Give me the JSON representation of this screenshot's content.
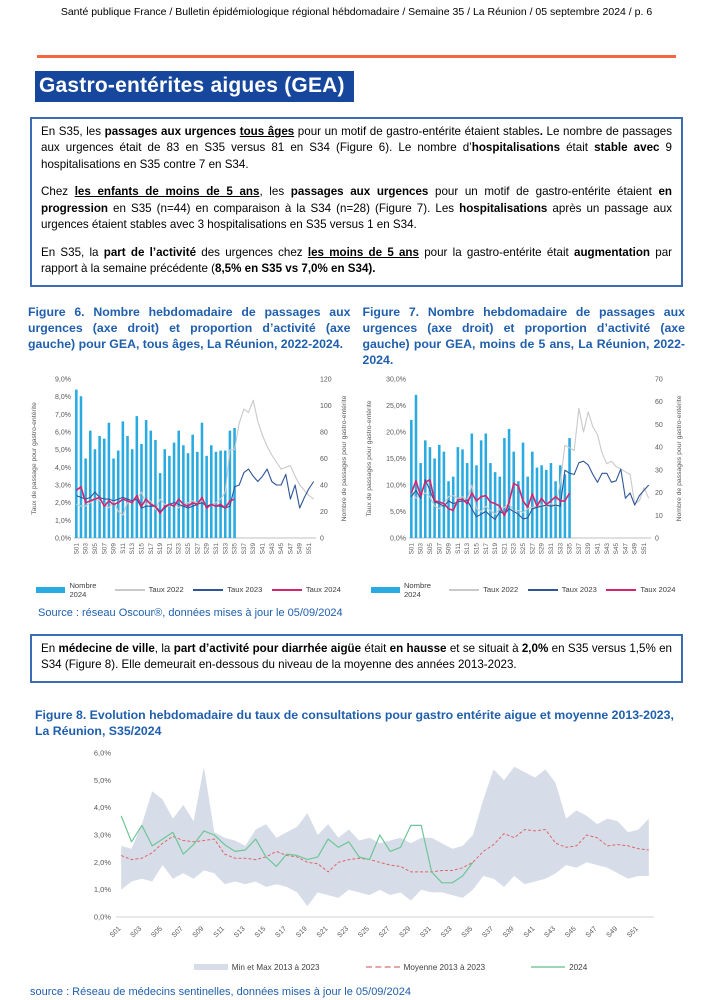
{
  "header": {
    "text": "Santé publique France / Bulletin épidémiologique régional hébdomadaire / Semaine 35 / La Réunion / 05 septembre 2024 / p. 6"
  },
  "title": "Gastro-entérites aigues (GEA)",
  "colors": {
    "accent_orange": "#F4663F",
    "title_bg": "#17479D",
    "caption_blue": "#1F5FAD",
    "box_border": "#3B6CB4",
    "bar_cyan": "#29ABE2",
    "line_gray_2022": "#C9C9C9",
    "line_blue_2023": "#2F5597",
    "line_pink_2024": "#D6246E",
    "band_gray": "#D7DDE8",
    "mean_red": "#E06666",
    "green_2024": "#6EC696",
    "source_blue": "#1F5FAD"
  },
  "box1": {
    "p1": [
      {
        "t": "En S35, les ",
        "s": ""
      },
      {
        "t": "passages aux urgences ",
        "s": "b"
      },
      {
        "t": "tous âges",
        "s": "bu"
      },
      {
        "t": " pour un motif de gastro-entérite étaient stables",
        "s": ""
      },
      {
        "t": ".",
        "s": "b"
      },
      {
        "t": " Le nombre de passages aux urgences était de 83 en S35 versus 81 en S34 (Figure 6). Le nombre d’",
        "s": ""
      },
      {
        "t": "hospitalisations",
        "s": "b"
      },
      {
        "t": " était ",
        "s": ""
      },
      {
        "t": "stable avec",
        "s": "b"
      },
      {
        "t": " 9 hospitalisations en S35 contre 7 en S34.",
        "s": ""
      }
    ],
    "p2": [
      {
        "t": "Chez ",
        "s": ""
      },
      {
        "t": "les enfants de moins de 5 ans",
        "s": "bu"
      },
      {
        "t": ", les ",
        "s": ""
      },
      {
        "t": "passages aux urgences",
        "s": "b"
      },
      {
        "t": " pour un motif de gastro-entérite étaient ",
        "s": ""
      },
      {
        "t": "en progression",
        "s": "b"
      },
      {
        "t": " en S35 (n=44) en comparaison à la S34 (n=28) (Figure 7). Les ",
        "s": ""
      },
      {
        "t": "hospitalisations",
        "s": "b"
      },
      {
        "t": " après un passage aux urgences étaient stables avec 3 hospitalisations en S35 versus 1 en S34.",
        "s": ""
      }
    ],
    "p3": [
      {
        "t": "En S35, la ",
        "s": ""
      },
      {
        "t": "part de l’activité",
        "s": "b"
      },
      {
        "t": " des urgences chez ",
        "s": ""
      },
      {
        "t": "les moins de 5 ans",
        "s": "bu"
      },
      {
        "t": " pour la gastro-entérite était ",
        "s": ""
      },
      {
        "t": "augmentation",
        "s": "b"
      },
      {
        "t": " par rapport à la semaine précédente (",
        "s": ""
      },
      {
        "t": "8,5% en S35 vs 7,0% en S34).",
        "s": "b"
      }
    ]
  },
  "box2": {
    "p1": [
      {
        "t": "En ",
        "s": ""
      },
      {
        "t": "médecine de ville",
        "s": "b"
      },
      {
        "t": ", la ",
        "s": ""
      },
      {
        "t": "part d’activité pour diarrhée aigüe",
        "s": "b"
      },
      {
        "t": " était ",
        "s": ""
      },
      {
        "t": "en hausse",
        "s": "b"
      },
      {
        "t": " et se situait à ",
        "s": ""
      },
      {
        "t": "2,0%",
        "s": "b"
      },
      {
        "t": " en S35 versus 1,5% en S34 (Figure 8). Elle demeurait en-dessous du niveau de la moyenne des années 2013-2023.",
        "s": ""
      }
    ]
  },
  "figures": {
    "fig6": {
      "caption": "Figure 6. Nombre hebdomadaire de passages aux urgences (axe droit) et proportion d’activité (axe gauche) pour GEA, tous âges, La Réunion, 2022-2024."
    },
    "fig7": {
      "caption": "Figure 7. Nombre hebdomadaire de passages aux urgences (axe droit) et proportion d’activité (axe gauche) pour GEA, moins de 5 ans, La Réunion, 2022-2024."
    },
    "fig8": {
      "caption": "Figure 8. Evolution hebdomadaire du taux de consultations pour gastro entérite aigue et moyenne 2013-2023, La Réunion, S35/2024"
    }
  },
  "sources": {
    "oscour": "Source : réseau Oscour®, données mises à jour le 05/09/2024",
    "sentinelles": "source : Réseau de médecins sentinelles, données mises à jour le 05/09/2024"
  },
  "chart_data": [
    {
      "type": "bar",
      "kind": "combo",
      "title": "Figure 6 - GEA tous âges, La Réunion, 2022-2024",
      "categories": [
        "S01",
        "S02",
        "S03",
        "S04",
        "S05",
        "S06",
        "S07",
        "S08",
        "S09",
        "S10",
        "S11",
        "S12",
        "S13",
        "S14",
        "S15",
        "S16",
        "S17",
        "S18",
        "S19",
        "S20",
        "S21",
        "S22",
        "S23",
        "S24",
        "S25",
        "S26",
        "S27",
        "S28",
        "S29",
        "S30",
        "S31",
        "S32",
        "S33",
        "S34",
        "S35",
        "S36",
        "S37",
        "S38",
        "S39",
        "S40",
        "S41",
        "S42",
        "S43",
        "S44",
        "S45",
        "S46",
        "S47",
        "S48",
        "S49",
        "S50",
        "S51",
        "S52"
      ],
      "bars": {
        "name": "Nombre 2024",
        "axis": "right",
        "color": "#29ABE2",
        "values": [
          112,
          107,
          60,
          81,
          67,
          77,
          75,
          87,
          60,
          66,
          88,
          77,
          67,
          92,
          71,
          89,
          81,
          74,
          49,
          67,
          62,
          72,
          81,
          70,
          64,
          78,
          65,
          87,
          62,
          70,
          65,
          66,
          66,
          81,
          83
        ]
      },
      "lines": [
        {
          "name": "Taux 2022",
          "color": "#C9C9C9",
          "width": 1.1,
          "values": [
            1.9,
            1.8,
            1.8,
            2.0,
            2.2,
            2.1,
            1.9,
            1.7,
            2.1,
            1.5,
            1.3,
            2.0,
            2.1,
            2.2,
            2.6,
            1.9,
            2.1,
            1.6,
            2.2,
            1.9,
            1.8,
            2.0,
            1.7,
            1.9,
            2.0,
            2.1,
            2.0,
            2.1,
            1.8,
            1.9,
            2.0,
            2.2,
            2.6,
            5.0,
            5.0,
            6.5,
            7.3,
            7.1,
            7.8,
            6.6,
            5.8,
            5.2,
            4.7,
            4.3,
            3.9,
            4.0,
            4.1,
            3.5,
            3.0,
            2.7,
            2.4,
            2.2
          ]
        },
        {
          "name": "Taux 2023",
          "color": "#2F5597",
          "width": 1.1,
          "values": [
            2.4,
            2.3,
            2.2,
            2.3,
            2.6,
            2.3,
            2.2,
            2.2,
            2.1,
            2.2,
            2.3,
            2.2,
            2.1,
            2.2,
            1.7,
            1.8,
            1.8,
            1.8,
            1.5,
            1.7,
            1.9,
            2.0,
            1.9,
            1.8,
            1.7,
            1.8,
            1.9,
            2.0,
            1.8,
            1.9,
            1.8,
            1.8,
            1.7,
            1.8,
            2.9,
            3.0,
            3.7,
            3.9,
            3.5,
            3.2,
            3.5,
            3.9,
            3.2,
            3.0,
            3.0,
            3.6,
            2.2,
            3.0,
            1.7,
            2.3,
            2.8,
            3.2
          ]
        },
        {
          "name": "Taux 2024",
          "color": "#D6246E",
          "width": 1.6,
          "values": [
            2.7,
            2.9,
            2.0,
            2.1,
            2.2,
            2.3,
            1.8,
            2.1,
            1.9,
            2.0,
            2.2,
            2.1,
            2.0,
            2.4,
            1.8,
            2.2,
            1.9,
            1.8,
            1.4,
            1.8,
            1.9,
            1.8,
            2.2,
            1.9,
            1.8,
            2.0,
            1.9,
            2.3,
            1.7,
            1.9,
            1.8,
            1.9,
            1.7,
            2.1,
            2.2
          ]
        }
      ],
      "left": {
        "min": 0,
        "max": 9,
        "step": 1,
        "percent": true,
        "label": "Taux de passage pour gastro-entérite"
      },
      "right": {
        "min": 0,
        "max": 120,
        "step": 20,
        "label": "Nombre de passages pour gastro-entérite"
      }
    },
    {
      "type": "bar",
      "kind": "combo",
      "title": "Figure 7 - GEA moins de 5 ans, La Réunion, 2022-2024",
      "categories": [
        "S01",
        "S02",
        "S03",
        "S04",
        "S05",
        "S06",
        "S07",
        "S08",
        "S09",
        "S10",
        "S11",
        "S12",
        "S13",
        "S14",
        "S15",
        "S16",
        "S17",
        "S18",
        "S19",
        "S20",
        "S21",
        "S22",
        "S23",
        "S24",
        "S25",
        "S26",
        "S27",
        "S28",
        "S29",
        "S30",
        "S31",
        "S32",
        "S33",
        "S34",
        "S35",
        "S36",
        "S37",
        "S38",
        "S39",
        "S40",
        "S41",
        "S42",
        "S43",
        "S44",
        "S45",
        "S46",
        "S47",
        "S48",
        "S49",
        "S50",
        "S51",
        "S52"
      ],
      "bars": {
        "name": "Nombre 2024",
        "axis": "right",
        "color": "#29ABE2",
        "values": [
          52,
          63,
          33,
          43,
          40,
          35,
          41,
          38,
          25,
          27,
          40,
          39,
          33,
          46,
          32,
          43,
          46,
          33,
          29,
          27,
          44,
          48,
          38,
          25,
          42,
          27,
          38,
          31,
          32,
          30,
          33,
          25,
          32,
          28,
          44
        ]
      },
      "lines": [
        {
          "name": "Taux 2022",
          "color": "#C9C9C9",
          "width": 1.1,
          "values": [
            9.0,
            7.5,
            8.0,
            8.5,
            7.8,
            6.0,
            5.5,
            6.5,
            7.8,
            8.0,
            7.5,
            7.8,
            7.2,
            10.0,
            5.5,
            5.0,
            6.0,
            5.2,
            4.5,
            5.5,
            5.8,
            6.5,
            5.0,
            5.2,
            4.8,
            5.5,
            5.8,
            6.0,
            6.2,
            6.0,
            6.5,
            6.0,
            10.5,
            17.5,
            17.0,
            16.5,
            24.5,
            20.0,
            23.8,
            21.0,
            19.5,
            16.0,
            14.0,
            14.5,
            13.5,
            13.0,
            12.5,
            12.0,
            6.5,
            7.0,
            9.5,
            7.5
          ]
        },
        {
          "name": "Taux 2023",
          "color": "#2F5597",
          "width": 1.1,
          "values": [
            7.8,
            9.0,
            7.5,
            11.0,
            9.0,
            6.8,
            6.5,
            6.0,
            7.0,
            6.5,
            6.8,
            7.0,
            7.2,
            5.5,
            4.0,
            4.5,
            5.0,
            4.2,
            3.5,
            5.0,
            4.5,
            5.5,
            5.0,
            4.5,
            3.6,
            3.8,
            5.5,
            5.8,
            6.0,
            6.2,
            6.0,
            6.2,
            6.0,
            12.8,
            12.2,
            12.0,
            14.2,
            14.5,
            13.8,
            12.0,
            10.5,
            12.2,
            12.2,
            10.5,
            10.8,
            13.0,
            7.5,
            8.5,
            6.2,
            8.0,
            9.0,
            10.0
          ]
        },
        {
          "name": "Taux 2024",
          "color": "#D6246E",
          "width": 1.6,
          "values": [
            8.5,
            10.8,
            8.0,
            10.5,
            11.0,
            7.0,
            6.8,
            6.5,
            5.5,
            5.2,
            7.2,
            7.3,
            6.5,
            8.5,
            7.0,
            7.8,
            8.0,
            6.8,
            6.5,
            6.0,
            4.2,
            6.8,
            10.3,
            9.8,
            7.0,
            5.8,
            8.3,
            6.0,
            7.5,
            6.3,
            7.0,
            7.8,
            7.0,
            7.0,
            8.5
          ]
        }
      ],
      "left": {
        "min": 0,
        "max": 30,
        "step": 5,
        "percent": true,
        "label": "Taux de passages pour gastro-entérite"
      },
      "right": {
        "min": 0,
        "max": 70,
        "step": 10,
        "label": "Nombre de passages pour gastro-entérite"
      }
    },
    {
      "type": "area",
      "kind": "band",
      "title": "Figure 8 - Taux de consultations GEA médecine de ville, La Réunion",
      "categories": [
        "S01",
        "S02",
        "S03",
        "S04",
        "S05",
        "S06",
        "S07",
        "S08",
        "S09",
        "S10",
        "S11",
        "S12",
        "S13",
        "S14",
        "S15",
        "S16",
        "S17",
        "S18",
        "S19",
        "S20",
        "S21",
        "S22",
        "S23",
        "S24",
        "S25",
        "S26",
        "S27",
        "S28",
        "S29",
        "S30",
        "S31",
        "S32",
        "S33",
        "S34",
        "S35",
        "S36",
        "S37",
        "S38",
        "S39",
        "S40",
        "S41",
        "S42",
        "S43",
        "S44",
        "S45",
        "S46",
        "S47",
        "S48",
        "S49",
        "S50",
        "S51",
        "S52"
      ],
      "band": {
        "name": "Min et Max 2013 à 2023",
        "color": "#D7DDE8",
        "max": [
          2.6,
          2.5,
          3.4,
          4.6,
          4.3,
          3.6,
          4.1,
          3.5,
          5.5,
          3.1,
          2.9,
          2.8,
          2.6,
          3.2,
          3.4,
          2.9,
          3.1,
          3.3,
          3.8,
          3.0,
          3.4,
          2.9,
          3.2,
          2.8,
          2.9,
          2.7,
          2.8,
          2.9,
          2.7,
          2.9,
          2.9,
          2.7,
          2.5,
          2.6,
          3.0,
          4.3,
          5.4,
          5.0,
          5.5,
          5.3,
          5.1,
          5.4,
          4.9,
          3.6,
          3.9,
          3.7,
          3.4,
          3.6,
          3.5,
          3.1,
          3.2,
          3.6
        ],
        "min": [
          1.0,
          1.3,
          1.4,
          1.3,
          1.9,
          1.4,
          1.6,
          1.4,
          1.7,
          1.6,
          1.2,
          1.3,
          1.2,
          1.3,
          1.1,
          1.2,
          1.1,
          0.9,
          0.4,
          0.9,
          0.8,
          0.7,
          1.0,
          0.9,
          0.8,
          1.0,
          0.8,
          0.9,
          0.6,
          1.0,
          0.9,
          0.9,
          0.8,
          0.7,
          1.0,
          1.5,
          1.4,
          1.1,
          1.5,
          1.2,
          1.3,
          1.4,
          1.6,
          1.9,
          1.8,
          2.0,
          1.9,
          1.8,
          1.6,
          1.4,
          1.5,
          1.5
        ]
      },
      "lines": [
        {
          "name": "Moyenne 2013 à 2023",
          "color": "#E06666",
          "width": 1,
          "dash": "3 2",
          "values": [
            2.25,
            2.1,
            2.15,
            2.35,
            2.7,
            2.95,
            2.8,
            2.75,
            2.8,
            2.85,
            2.3,
            2.15,
            2.15,
            2.1,
            2.2,
            2.4,
            2.25,
            2.2,
            2.0,
            1.95,
            1.65,
            2.0,
            2.1,
            2.15,
            2.1,
            2.0,
            1.9,
            1.85,
            1.65,
            1.65,
            1.65,
            1.7,
            1.7,
            1.8,
            2.0,
            2.4,
            2.65,
            3.05,
            2.9,
            3.2,
            3.15,
            3.2,
            2.7,
            2.55,
            2.6,
            3.0,
            2.9,
            2.6,
            2.65,
            2.6,
            2.5,
            2.45
          ]
        },
        {
          "name": "2024",
          "color": "#6EC696",
          "width": 1.2,
          "values": [
            3.7,
            2.75,
            3.35,
            2.6,
            2.85,
            3.1,
            2.3,
            2.65,
            3.15,
            3.0,
            2.65,
            2.4,
            2.45,
            2.85,
            2.2,
            1.85,
            2.3,
            2.25,
            2.1,
            2.2,
            2.85,
            2.55,
            2.75,
            2.2,
            2.1,
            3.0,
            2.4,
            2.55,
            3.35,
            3.35,
            1.65,
            1.25,
            1.25,
            1.5,
            2.0
          ]
        }
      ],
      "left": {
        "min": 0,
        "max": 6,
        "step": 1,
        "percent": true
      }
    }
  ]
}
